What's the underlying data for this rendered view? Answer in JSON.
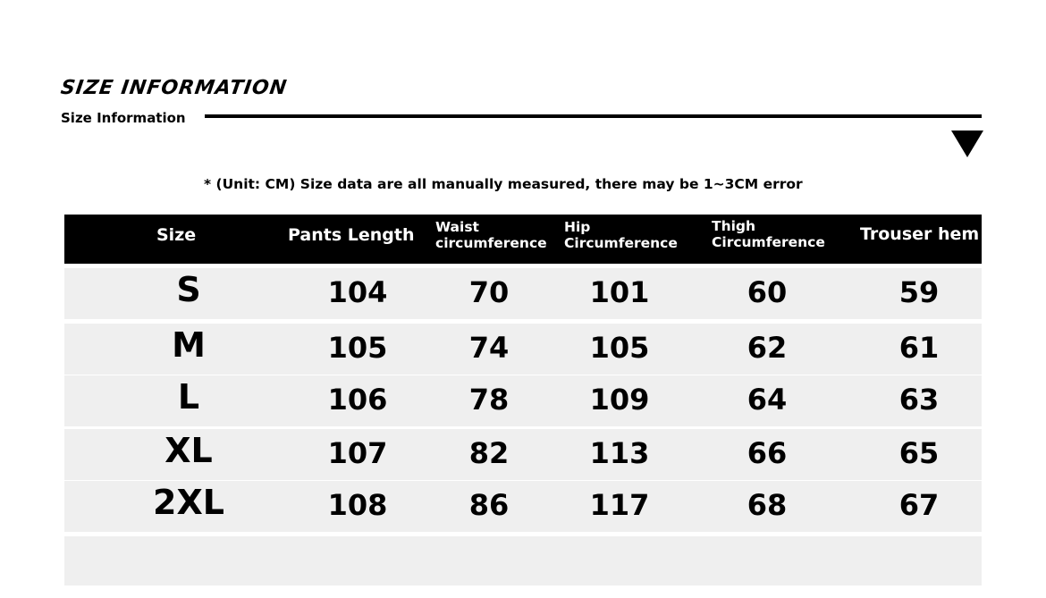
{
  "title": "SIZE INFORMATION",
  "subtitle": "Size Information",
  "note": "* (Unit: CM) Size data are all manually measured, there may be 1~3CM error",
  "icons": {
    "arrow": "triangle-down-icon"
  },
  "table": {
    "headers": [
      "Size",
      "Pants Length",
      "Waist circumference",
      "Hip Circumference",
      "Thigh Circumference",
      "Trouser hem"
    ],
    "header_lines": {
      "waist": [
        "Waist",
        "circumference"
      ],
      "hip": [
        "Hip",
        "Circumference"
      ],
      "thigh": [
        "Thigh",
        "Circumference"
      ]
    },
    "rows": [
      [
        "S",
        "104",
        "70",
        "101",
        "60",
        "59"
      ],
      [
        "M",
        "105",
        "74",
        "105",
        "62",
        "61"
      ],
      [
        "L",
        "106",
        "78",
        "109",
        "64",
        "63"
      ],
      [
        "XL",
        "107",
        "82",
        "113",
        "66",
        "65"
      ],
      [
        "2XL",
        "108",
        "86",
        "117",
        "68",
        "67"
      ]
    ]
  }
}
